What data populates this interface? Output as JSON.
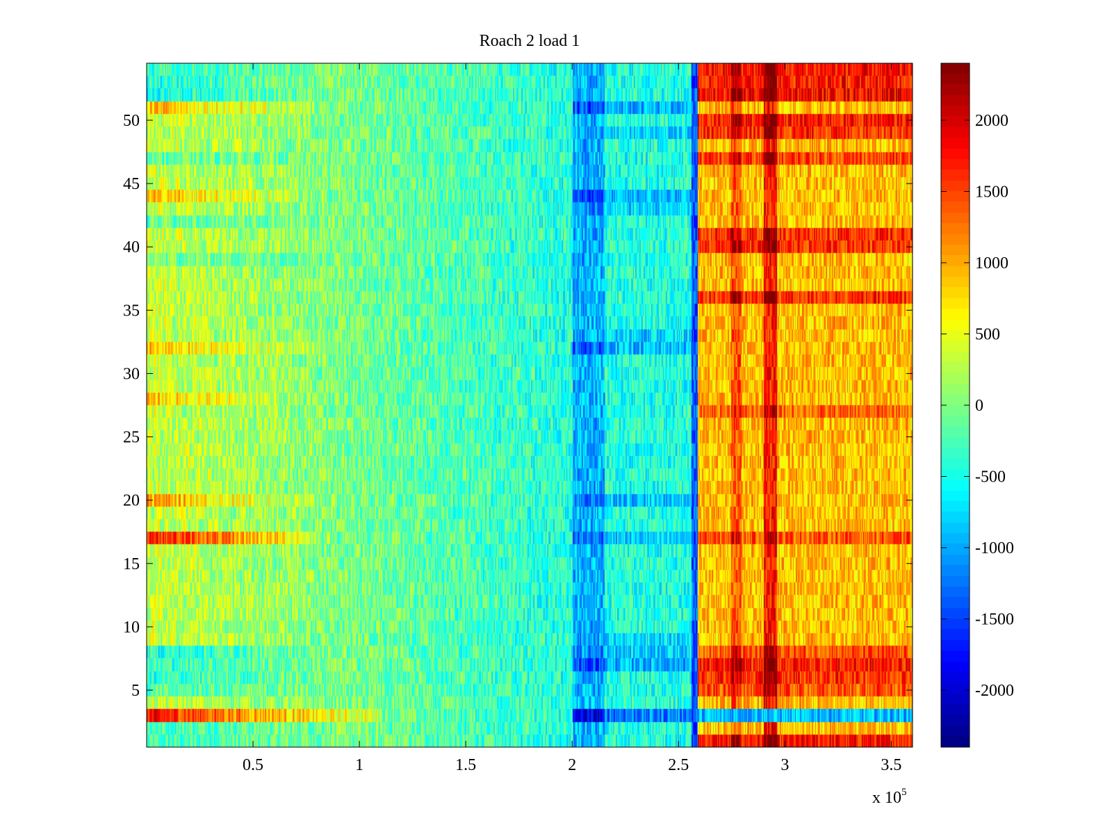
{
  "chart_data": {
    "type": "heatmap",
    "title": "Roach 2 load 1",
    "xlabel": "",
    "ylabel": "",
    "x_multiplier": "x 10",
    "x_multiplier_exp": "5",
    "xlim": [
      0,
      360000
    ],
    "ylim": [
      0.5,
      54.5
    ],
    "xticks": [
      50000,
      100000,
      150000,
      200000,
      250000,
      300000,
      350000
    ],
    "xtick_labels": [
      "0.5",
      "1",
      "1.5",
      "2",
      "2.5",
      "3",
      "3.5"
    ],
    "yticks": [
      5,
      10,
      15,
      20,
      25,
      30,
      35,
      40,
      45,
      50
    ],
    "ytick_labels": [
      "5",
      "10",
      "15",
      "20",
      "25",
      "30",
      "35",
      "40",
      "45",
      "50"
    ],
    "rows": 54,
    "colormap": "jet",
    "clim": [
      -2400,
      2400
    ],
    "colorbar": {
      "ticks": [
        2000,
        1500,
        1000,
        500,
        0,
        -500,
        -1000,
        -1500,
        -2000
      ],
      "tick_labels": [
        "2000",
        "1500",
        "1000",
        "500",
        "0",
        "-500",
        "-1000",
        "-1500",
        "-2000"
      ]
    },
    "regions": [
      {
        "x_range": [
          0,
          60000
        ],
        "typical_value": 300,
        "note": "yellow-green, warm rows at 3, 17, 20, 28, 32, 44, 51"
      },
      {
        "x_range": [
          200000,
          215000
        ],
        "typical_value": -1200,
        "note": "blue band, darkest near rows 3, 7, 32, 44, 51"
      },
      {
        "x_range": [
          258000,
          360000
        ],
        "typical_value": 1000,
        "note": "orange-red region, hottest near x = 293000"
      }
    ]
  }
}
